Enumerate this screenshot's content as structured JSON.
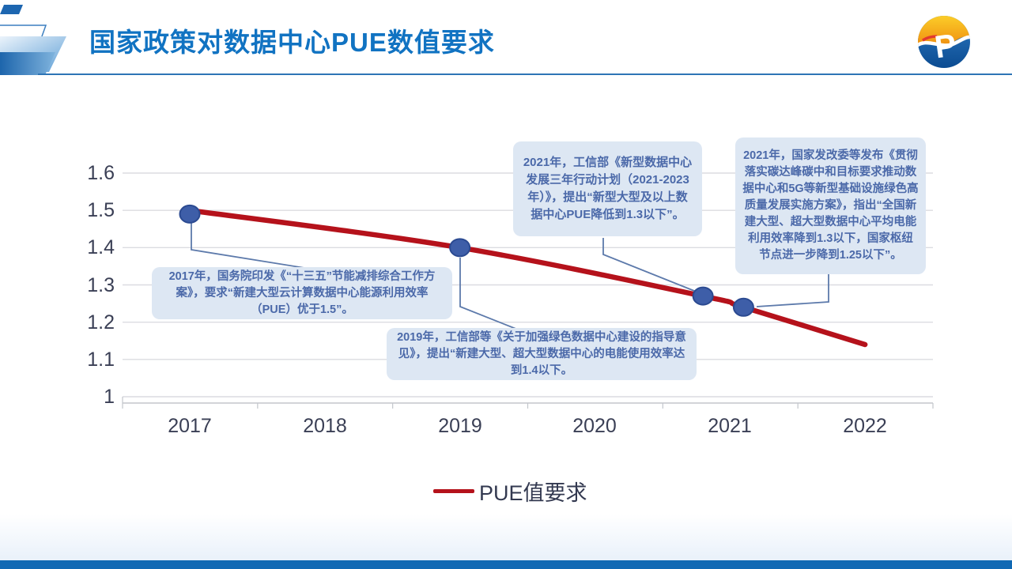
{
  "slide": {
    "title": "国家政策对数据中心PUE数值要求",
    "logo": {
      "letter": "P"
    },
    "colors": {
      "title_blue": "#1173c2",
      "header_rule": "#2e75b6",
      "bottom_bar": "#1069b4",
      "callout_fill": "#dde7f3",
      "callout_text": "#4b69a9"
    }
  },
  "chart_data": {
    "type": "line",
    "title": "",
    "xlabel": "",
    "ylabel": "",
    "x_ticks": [
      "2017",
      "2018",
      "2019",
      "2020",
      "2021",
      "2022"
    ],
    "y_ticks": [
      "1.6",
      "1.5",
      "1.4",
      "1.3",
      "1.2",
      "1.1",
      "1"
    ],
    "y_tick_values": [
      1.6,
      1.5,
      1.4,
      1.3,
      1.2,
      1.1,
      1.0
    ],
    "xlim": [
      2016.5,
      2022.5
    ],
    "ylim": [
      1.0,
      1.6
    ],
    "grid": true,
    "legend": {
      "position": "bottom",
      "label": "PUE值要求"
    },
    "series": [
      {
        "name": "PUE值要求",
        "color": "#b5121b",
        "line_width": 6.5,
        "points": [
          {
            "x": 2017,
            "y": 1.5
          },
          {
            "x": 2019,
            "y": 1.4
          },
          {
            "x": 2020.8,
            "y": 1.27
          },
          {
            "x": 2021.1,
            "y": 1.24
          },
          {
            "x": 2022,
            "y": 1.14
          }
        ],
        "marker_points": [
          {
            "x": 2017,
            "y": 1.49
          },
          {
            "x": 2019,
            "y": 1.4
          },
          {
            "x": 2020.8,
            "y": 1.27
          },
          {
            "x": 2021.1,
            "y": 1.24
          }
        ],
        "marker_color": "#3e5ea8",
        "marker_edge": "#2b4a91"
      }
    ],
    "annotations": [
      {
        "year": "2017",
        "text": "2017年，国务院印发《“十三五”节能减排综合工作方案》，要求“新建大型云计算数据中心能源利用效率（PUE）优于1.5”。"
      },
      {
        "year": "2019",
        "text": "2019年，工信部等《关于加强绿色数据中心建设的指导意见》，提出“新建大型、超大型数据中心的电能使用效率达到1.4以下。"
      },
      {
        "year": "2021",
        "text": "2021年，工信部《新型数据中心发展三年行动计划（2021-2023年）》，提出“新型大型及以上数据中心PUE降低到1.3以下”。"
      },
      {
        "year": "2021",
        "text": "2021年，国家发改委等发布《贯彻落实碳达峰碳中和目标要求推动数据中心和5G等新型基础设施绿色高质量发展实施方案》，指出“全国新建大型、超大型数据中心平均电能利用效率降到1.3以下，国家枢纽节点进一步降到1.25以下”。"
      }
    ]
  }
}
